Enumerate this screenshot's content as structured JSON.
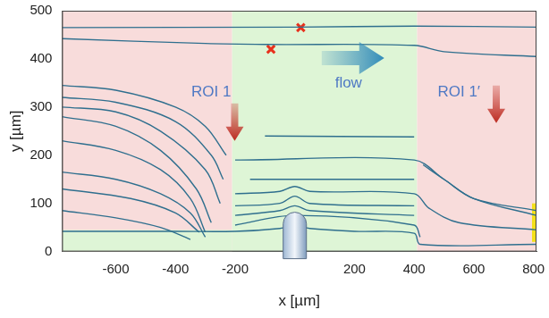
{
  "chart_data": {
    "type": "line",
    "x_label": "x [µm]",
    "y_label": "y [µm]",
    "xlim": [
      -780,
      810
    ],
    "xticks": [
      -600,
      -400,
      -200,
      200,
      400,
      600,
      800
    ],
    "ylim": [
      0,
      500
    ],
    "yticks": [
      0,
      100,
      200,
      300,
      400,
      500
    ],
    "grid": false,
    "color": "#2f6f8e",
    "series": [
      {
        "x": [
          -780,
          0,
          400,
          810
        ],
        "values": [
          465,
          466,
          468,
          466
        ]
      },
      {
        "x": [
          -780,
          -300,
          -100,
          400,
          500,
          810
        ],
        "values": [
          442,
          432,
          430,
          428,
          415,
          405
        ]
      },
      {
        "x": [
          -780,
          -600,
          -400,
          -300,
          -230
        ],
        "values": [
          345,
          335,
          300,
          260,
          200
        ]
      },
      {
        "x": [
          -780,
          -600,
          -400,
          -280,
          -240
        ],
        "values": [
          320,
          310,
          270,
          200,
          150
        ]
      },
      {
        "x": [
          -780,
          -600,
          -450,
          -300,
          -250
        ],
        "values": [
          300,
          290,
          250,
          170,
          100
        ]
      },
      {
        "x": [
          -780,
          -600,
          -450,
          -330,
          -280
        ],
        "values": [
          280,
          260,
          210,
          130,
          60
        ]
      },
      {
        "x": [
          -780,
          -600,
          -450,
          -350,
          -300
        ],
        "values": [
          230,
          210,
          170,
          110,
          40
        ]
      },
      {
        "x": [
          -780,
          -600,
          -450,
          -350,
          -300
        ],
        "values": [
          165,
          150,
          120,
          80,
          30
        ]
      },
      {
        "x": [
          -780,
          -550,
          -400,
          -320
        ],
        "values": [
          130,
          110,
          80,
          40
        ]
      },
      {
        "x": [
          -780,
          -600,
          -450,
          -350
        ],
        "values": [
          85,
          70,
          50,
          25
        ]
      },
      {
        "x": [
          -780,
          -400,
          -200,
          -50,
          0,
          50,
          200,
          400,
          420,
          810
        ],
        "values": [
          42,
          42,
          42,
          48,
          55,
          48,
          42,
          38,
          15,
          15
        ]
      },
      {
        "x": [
          -100,
          400
        ],
        "values": [
          240,
          238
        ]
      },
      {
        "x": [
          -200,
          400,
          500,
          600,
          810
        ],
        "values": [
          190,
          190,
          150,
          110,
          85
        ]
      },
      {
        "x": [
          -150,
          400
        ],
        "values": [
          150,
          150
        ]
      },
      {
        "x": [
          -200,
          -50,
          0,
          50,
          400,
          450,
          550,
          810
        ],
        "values": [
          120,
          125,
          135,
          125,
          120,
          90,
          60,
          45
        ]
      },
      {
        "x": [
          -200,
          -50,
          0,
          50,
          400
        ],
        "values": [
          95,
          100,
          115,
          100,
          95
        ]
      },
      {
        "x": [
          -200,
          -50,
          0,
          50,
          400
        ],
        "values": [
          75,
          85,
          95,
          85,
          75
        ]
      },
      {
        "x": [
          -200,
          0,
          400,
          420
        ],
        "values": [
          55,
          75,
          55,
          30
        ]
      },
      {
        "x": [
          430,
          500,
          600,
          810
        ],
        "values": [
          180,
          150,
          110,
          75
        ]
      },
      {
        "type": "scatter",
        "marker": "cross",
        "color": "#e8301c",
        "x": [
          -80,
          20
        ],
        "values": [
          420,
          465
        ]
      }
    ],
    "regions": [
      {
        "x": [
          -780,
          -210
        ],
        "y": [
          0,
          500
        ],
        "color": "#f8dcdb"
      },
      {
        "x": [
          -210,
          410
        ],
        "y": [
          0,
          500
        ],
        "color": "#def5d6"
      },
      {
        "x": [
          410,
          810
        ],
        "y": [
          0,
          500
        ],
        "color": "#f8dcdb"
      },
      {
        "x": [
          -780,
          -210
        ],
        "y": [
          0,
          45
        ],
        "color": "#def5d6"
      },
      {
        "x": [
          795,
          810
        ],
        "y": [
          20,
          100
        ],
        "color": "#f3e01a"
      }
    ],
    "obstacle": {
      "x": 0
    },
    "annotations": [
      {
        "text": "ROI 1",
        "x": -280,
        "y": 330
      },
      {
        "text": "flow",
        "x": 180,
        "y": 350
      },
      {
        "text": "ROI 1′",
        "x": 550,
        "y": 330
      }
    ]
  }
}
